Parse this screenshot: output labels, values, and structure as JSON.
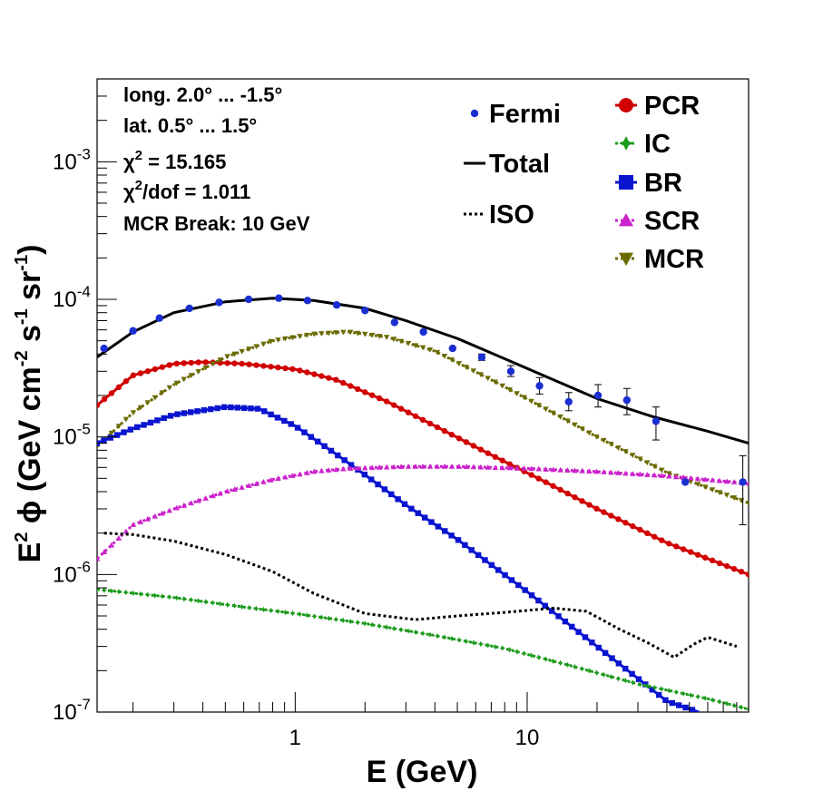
{
  "chart_data": {
    "type": "line",
    "xlabel": "E (GeV)",
    "ylabel_main": "E",
    "ylabel_sup": "2",
    "ylabel_phi": "ϕ",
    "ylabel_units": "(GeV cm",
    "ylabel_units_sup1": "-2",
    "ylabel_units_mid": " s",
    "ylabel_units_sup2": "-1",
    "ylabel_units_mid2": " sr",
    "ylabel_units_sup3": "-1",
    "ylabel_units_end": ")",
    "x_scale": "log",
    "y_scale": "log",
    "xlim": [
      0.14,
      90
    ],
    "ylim": [
      1e-07,
      0.004
    ],
    "x_tick_labels": [
      {
        "value": 1,
        "label": "1"
      },
      {
        "value": 10,
        "label": "10"
      }
    ],
    "y_tick_labels": [
      {
        "value": 1e-07,
        "base": "10",
        "exp": "-7"
      },
      {
        "value": 1e-06,
        "base": "10",
        "exp": "-6"
      },
      {
        "value": 1e-05,
        "base": "10",
        "exp": "-5"
      },
      {
        "value": 0.0001,
        "base": "10",
        "exp": "-4"
      },
      {
        "value": 0.001,
        "base": "10",
        "exp": "-3"
      }
    ],
    "info": {
      "line1": "long. 2.0° ... -1.5°",
      "line2": "lat. 0.5° ... 1.5°",
      "line3_chi": "χ",
      "line3_sup": "2",
      "line3_rest": " = 15.165",
      "line4_chi": "χ",
      "line4_sup": "2",
      "line4_rest": "/dof = 1.011",
      "line5": "MCR Break: 10 GeV"
    },
    "legend": [
      {
        "name": "Fermi",
        "color": "#1a2fd1",
        "marker": "circle",
        "line": "none"
      },
      {
        "name": "Total",
        "color": "#000000",
        "marker": "none",
        "line": "solid"
      },
      {
        "name": "ISO",
        "color": "#000000",
        "marker": "none",
        "line": "dotted"
      },
      {
        "name": "PCR",
        "color": "#d10000",
        "marker": "circle",
        "line": "solid"
      },
      {
        "name": "IC",
        "color": "#1a9a1a",
        "marker": "star",
        "line": "dotted"
      },
      {
        "name": "BR",
        "color": "#0a14d0",
        "marker": "square",
        "line": "solid"
      },
      {
        "name": "SCR",
        "color": "#cc22cc",
        "marker": "triangle-up",
        "line": "dotted"
      },
      {
        "name": "MCR",
        "color": "#6b6b00",
        "marker": "triangle-down",
        "line": "dotted"
      }
    ],
    "fermi_points": {
      "x": [
        0.15,
        0.2,
        0.26,
        0.35,
        0.47,
        0.63,
        0.85,
        1.13,
        1.51,
        2.0,
        2.68,
        3.57,
        4.77,
        6.37,
        8.5,
        11.3,
        15.1,
        20.2,
        26.9,
        35.9,
        48.0,
        85.0
      ],
      "y": [
        4.4e-05,
        5.9e-05,
        7.3e-05,
        8.6e-05,
        9.5e-05,
        0.0001,
        0.000102,
        9.8e-05,
        9.1e-05,
        8.3e-05,
        6.8e-05,
        5.8e-05,
        4.4e-05,
        3.8e-05,
        3e-05,
        2.35e-05,
        1.8e-05,
        2e-05,
        1.85e-05,
        1.3e-05,
        4.7e-06,
        4.7e-06
      ],
      "err_lo": [
        0,
        0,
        0,
        0,
        0,
        0,
        0,
        0,
        0,
        0,
        0,
        0,
        0,
        2e-06,
        2.5e-06,
        3e-06,
        2.5e-06,
        3.5e-06,
        4e-06,
        3.5e-06,
        0,
        2.4e-06
      ],
      "err_hi": [
        0,
        0,
        0,
        0,
        0,
        0,
        0,
        0,
        0,
        0,
        0,
        0,
        0,
        2e-06,
        3e-06,
        3.5e-06,
        3e-06,
        4e-06,
        4e-06,
        3.5e-06,
        0,
        2.6e-06
      ]
    },
    "series": [
      {
        "name": "Total",
        "x": [
          0.14,
          0.2,
          0.3,
          0.5,
          0.8,
          1.2,
          2.0,
          3.0,
          5.0,
          8.0,
          13.0,
          20.0,
          35.0,
          60.0,
          90.0
        ],
        "y": [
          3.8e-05,
          5.8e-05,
          8e-05,
          9.6e-05,
          0.000102,
          9.8e-05,
          8.6e-05,
          7e-05,
          5.2e-05,
          3.7e-05,
          2.6e-05,
          1.9e-05,
          1.4e-05,
          1.1e-05,
          9e-06
        ]
      },
      {
        "name": "PCR",
        "x": [
          0.14,
          0.2,
          0.3,
          0.4,
          0.6,
          1.0,
          1.5,
          2.5,
          4.0,
          7.0,
          12.0,
          20.0,
          40.0,
          90.0
        ],
        "y": [
          1.7e-05,
          2.8e-05,
          3.4e-05,
          3.5e-05,
          3.4e-05,
          3.1e-05,
          2.6e-05,
          1.8e-05,
          1.2e-05,
          7.4e-06,
          4.7e-06,
          3e-06,
          1.7e-06,
          1e-06
        ]
      },
      {
        "name": "MCR",
        "x": [
          0.14,
          0.2,
          0.3,
          0.5,
          0.8,
          1.2,
          1.7,
          2.5,
          4.0,
          7.0,
          12.0,
          20.0,
          40.0,
          90.0
        ],
        "y": [
          8.5e-06,
          1.5e-05,
          2.4e-05,
          3.8e-05,
          5e-05,
          5.6e-05,
          5.8e-05,
          5.3e-05,
          4.2e-05,
          2.6e-05,
          1.6e-05,
          1e-05,
          5.5e-06,
          3.3e-06
        ]
      },
      {
        "name": "BR",
        "x": [
          0.14,
          0.2,
          0.3,
          0.5,
          0.7,
          1.0,
          1.5,
          2.0,
          3.0,
          5.0,
          10.0,
          20.0,
          40.0,
          55.0
        ],
        "y": [
          9e-06,
          1.15e-05,
          1.45e-05,
          1.65e-05,
          1.6e-05,
          1.2e-05,
          7.5e-06,
          5.3e-06,
          3.2e-06,
          1.8e-06,
          7.5e-07,
          3e-07,
          1.2e-07,
          1e-07
        ]
      },
      {
        "name": "SCR",
        "x": [
          0.14,
          0.2,
          0.3,
          0.5,
          0.8,
          1.2,
          1.7,
          3.0,
          5.0,
          10.0,
          20.0,
          40.0,
          90.0
        ],
        "y": [
          1.3e-06,
          2.3e-06,
          3e-06,
          4e-06,
          4.9e-06,
          5.6e-06,
          5.9e-06,
          6.1e-06,
          6.1e-06,
          5.9e-06,
          5.6e-06,
          5.2e-06,
          4.6e-06
        ]
      },
      {
        "name": "ISO",
        "x": [
          0.15,
          0.2,
          0.3,
          0.5,
          0.8,
          1.2,
          2.0,
          3.3,
          5.0,
          8.0,
          13.0,
          18.0,
          25.0,
          33.0,
          43.0,
          52.0,
          60.0,
          80.0
        ],
        "y": [
          2e-06,
          1.95e-06,
          1.75e-06,
          1.4e-06,
          1.05e-06,
          7.3e-07,
          5.2e-07,
          4.7e-07,
          5e-07,
          5.3e-07,
          5.7e-07,
          5.4e-07,
          4e-07,
          3.2e-07,
          2.5e-07,
          3.1e-07,
          3.5e-07,
          3e-07
        ]
      },
      {
        "name": "IC",
        "x": [
          0.14,
          0.3,
          0.6,
          1.0,
          2.0,
          4.0,
          8.0,
          15.0,
          30.0,
          60.0,
          90.0
        ],
        "y": [
          7.8e-07,
          6.8e-07,
          5.8e-07,
          5.2e-07,
          4.4e-07,
          3.6e-07,
          2.9e-07,
          2.2e-07,
          1.6e-07,
          1.25e-07,
          1.05e-07
        ]
      }
    ]
  }
}
